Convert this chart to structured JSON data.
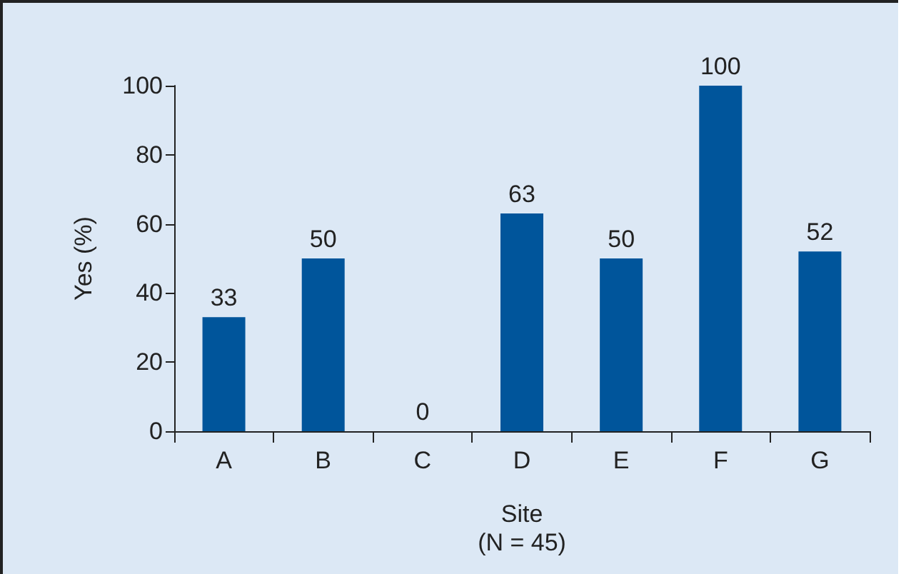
{
  "chart_data": {
    "type": "bar",
    "xlabel": "Site\n(N = 45)",
    "ylabel": "Yes (%)",
    "categories": [
      "A",
      "B",
      "C",
      "D",
      "E",
      "F",
      "G"
    ],
    "values": [
      33,
      50,
      0,
      63,
      50,
      100,
      52
    ],
    "color": "#00559b",
    "ylim": [
      0,
      100
    ],
    "yticks": [
      0,
      20,
      40,
      60,
      80,
      100
    ],
    "grid": false,
    "data_labels": true
  }
}
